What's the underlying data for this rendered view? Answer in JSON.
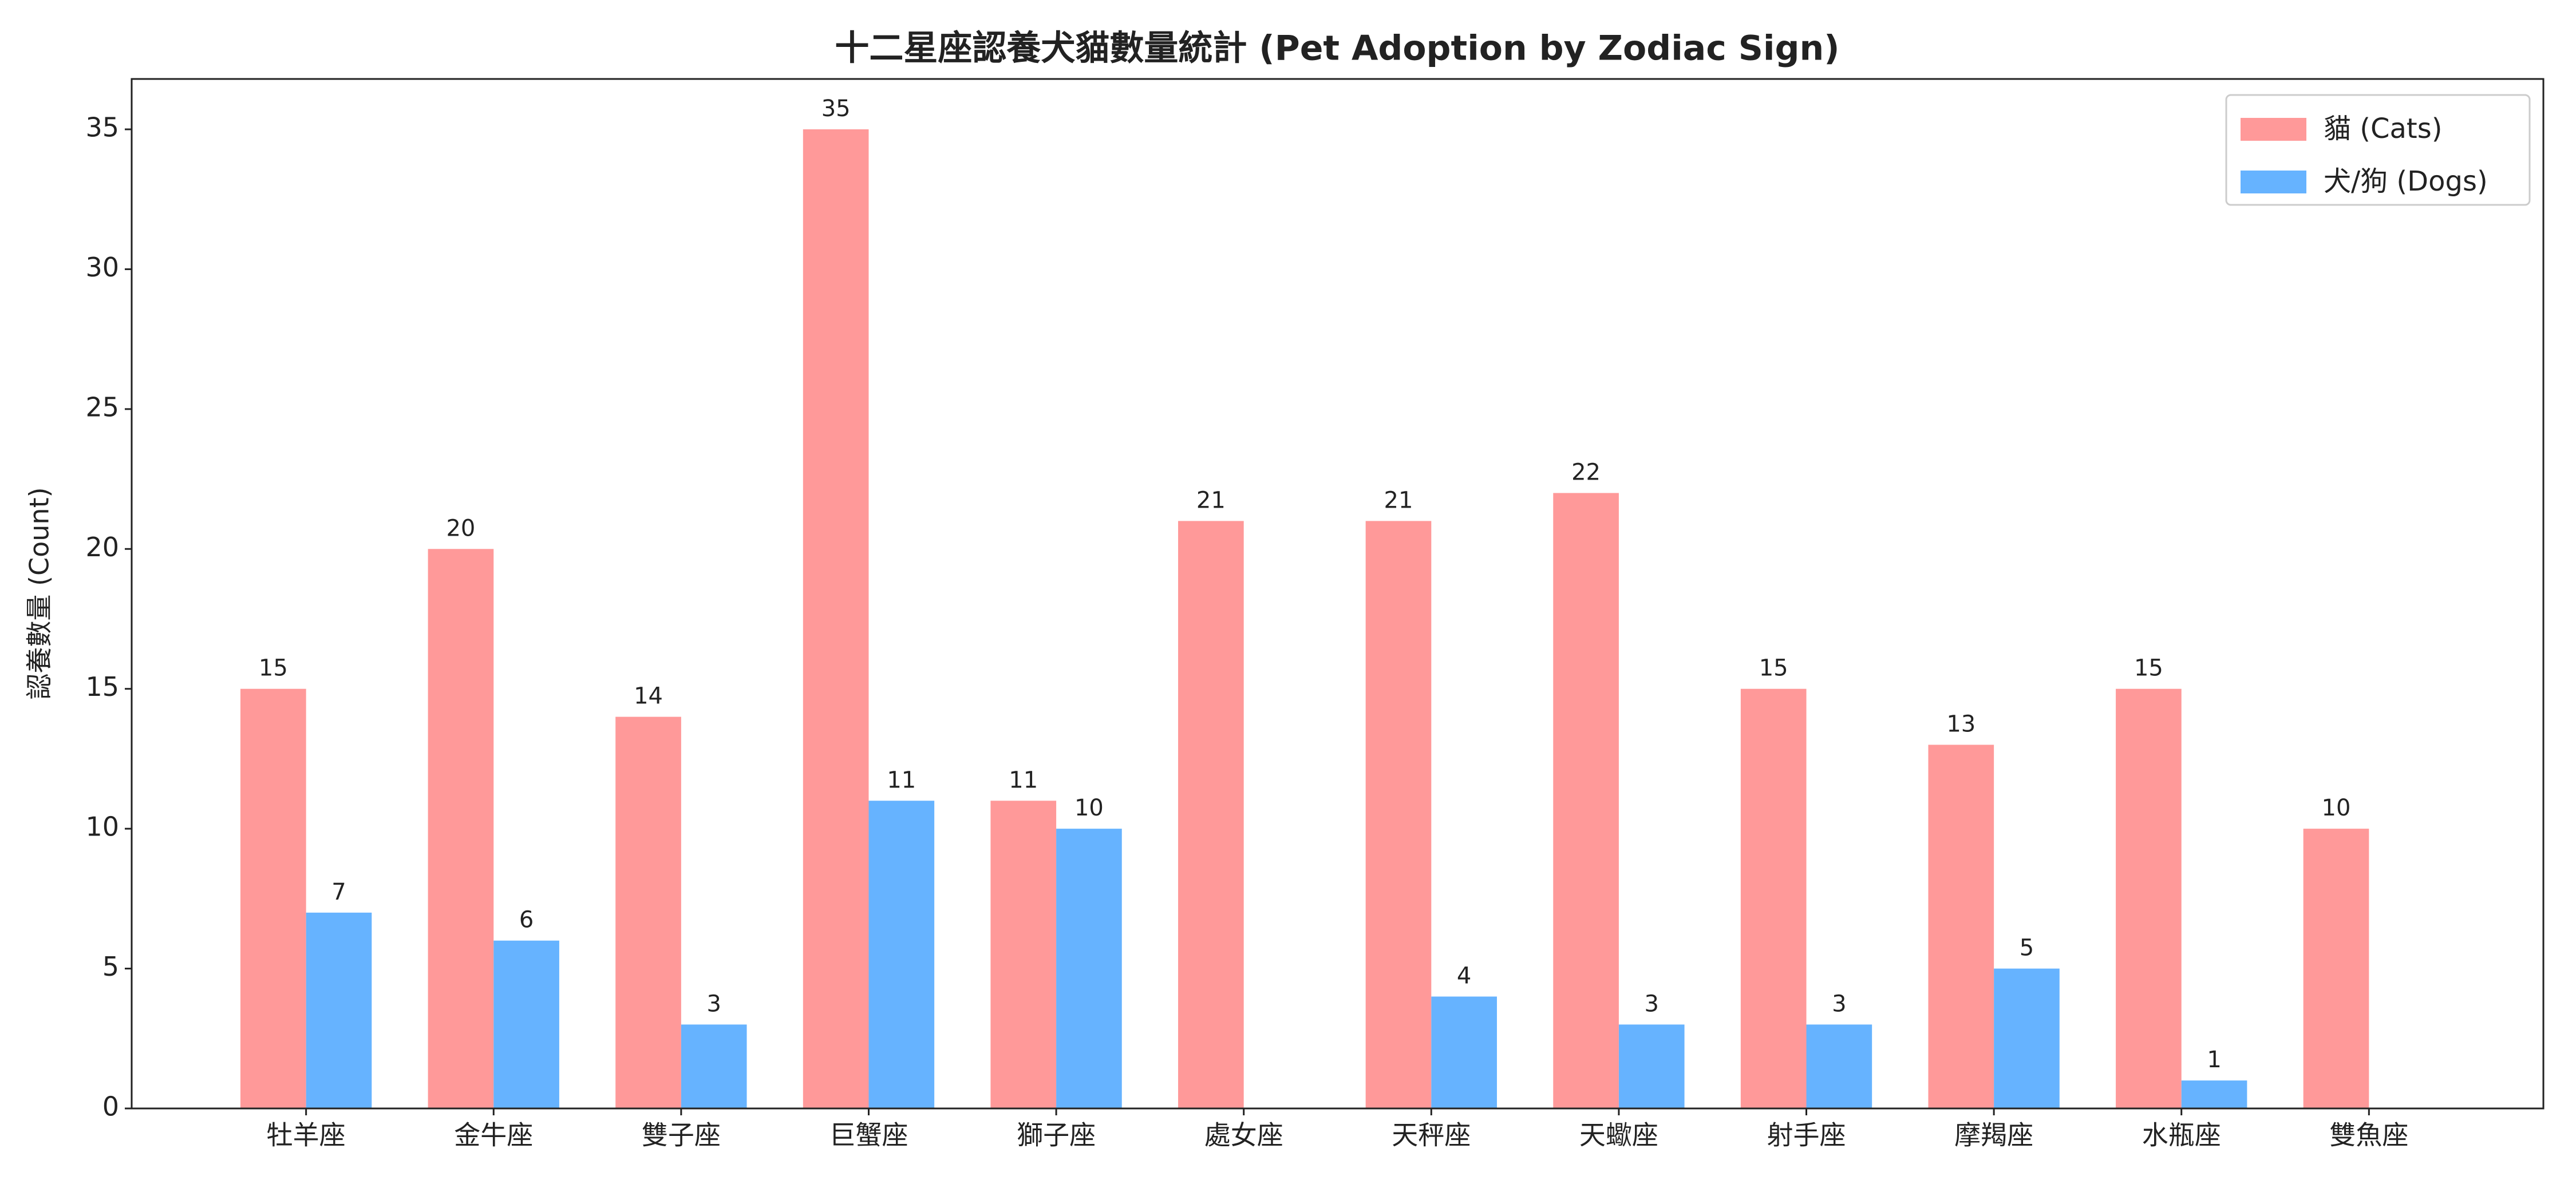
{
  "chart_data": {
    "type": "bar",
    "title": "十二星座認養犬貓數量統計 (Pet Adoption by Zodiac Sign)",
    "y_label": "認養數量 (Count)",
    "categories": [
      "牡羊座",
      "金牛座",
      "雙子座",
      "巨蟹座",
      "獅子座",
      "處女座",
      "天秤座",
      "天蠍座",
      "射手座",
      "摩羯座",
      "水瓶座",
      "雙魚座"
    ],
    "series": [
      {
        "name": "貓 (Cats)",
        "color": "#ff9999",
        "values": [
          15,
          20,
          14,
          35,
          11,
          21,
          21,
          22,
          15,
          13,
          15,
          10
        ]
      },
      {
        "name": "犬/狗 (Dogs)",
        "color": "#66b3ff",
        "values": [
          7,
          6,
          3,
          11,
          10,
          null,
          4,
          3,
          3,
          5,
          1,
          null
        ]
      }
    ],
    "ylim": [
      0,
      36.8
    ],
    "yticks": [
      0,
      5,
      10,
      15,
      20,
      25,
      30,
      35
    ],
    "legend": "upper right",
    "grid": false
  }
}
